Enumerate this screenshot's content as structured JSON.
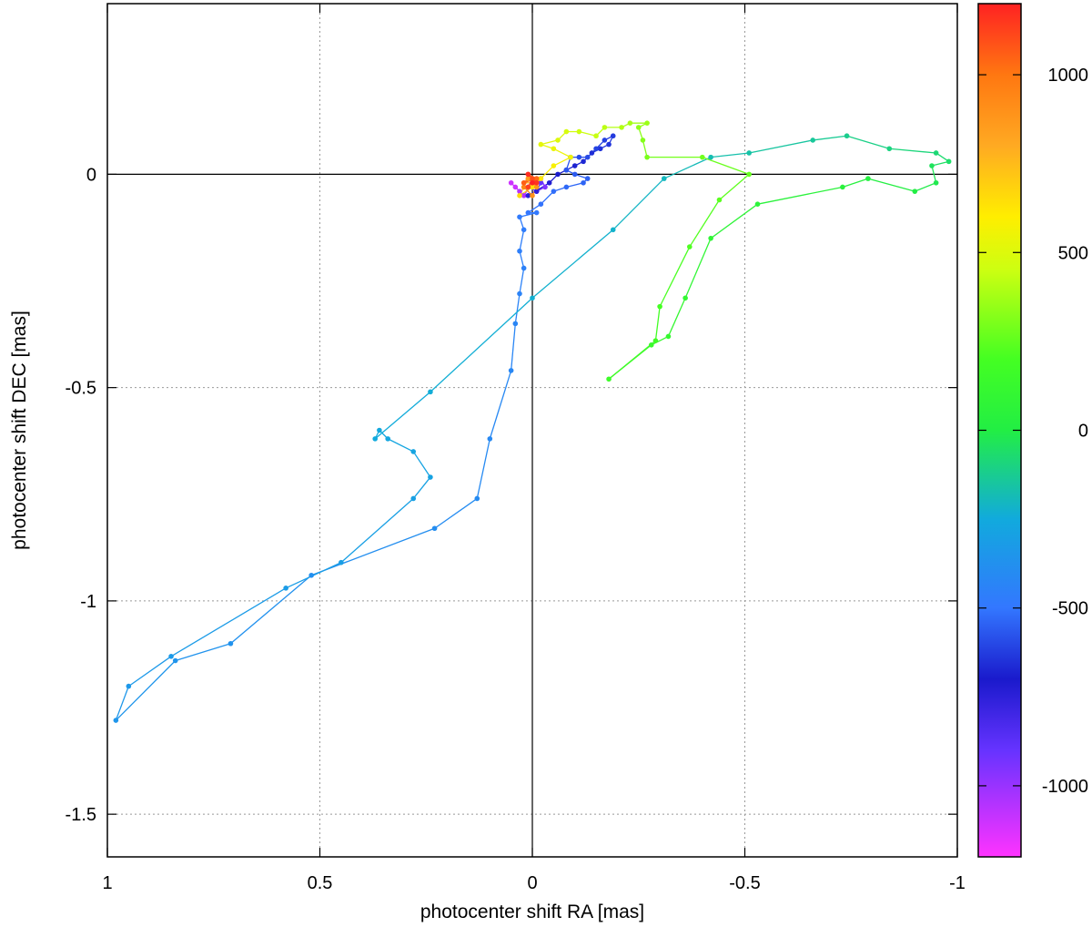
{
  "chart_data": {
    "type": "line",
    "xlabel": "photocenter shift RA [mas]",
    "ylabel": "photocenter shift DEC [mas]",
    "xlim": [
      1.0,
      -1.0
    ],
    "ylim": [
      -1.6,
      0.4
    ],
    "x_reversed": true,
    "xticks": [
      1,
      0.5,
      0,
      -0.5,
      -1
    ],
    "xtick_labels": [
      "1",
      "0.5",
      "0",
      "-0.5",
      "-1"
    ],
    "yticks": [
      0,
      -0.5,
      -1,
      -1.5
    ],
    "ytick_labels": [
      "0",
      "-0.5",
      "-1",
      "-1.5"
    ],
    "grid": true,
    "zero_lines": true,
    "colorbar": {
      "range": [
        -1200,
        1200
      ],
      "ticks": [
        1000,
        500,
        0,
        -500,
        -1000
      ],
      "tick_labels": [
        "1000",
        "500",
        "0",
        "-500",
        "-1000"
      ],
      "colors": [
        {
          "v": -1200,
          "c": "#ff33ff"
        },
        {
          "v": -900,
          "c": "#6633ff"
        },
        {
          "v": -700,
          "c": "#1a1acc"
        },
        {
          "v": -500,
          "c": "#3377ff"
        },
        {
          "v": -250,
          "c": "#11aadd"
        },
        {
          "v": 0,
          "c": "#22ee44"
        },
        {
          "v": 200,
          "c": "#44ff22"
        },
        {
          "v": 450,
          "c": "#ccff11"
        },
        {
          "v": 600,
          "c": "#ffee00"
        },
        {
          "v": 800,
          "c": "#ffaa22"
        },
        {
          "v": 1000,
          "c": "#ff7711"
        },
        {
          "v": 1200,
          "c": "#ff2222"
        }
      ]
    },
    "series": [
      {
        "values": [
          [
            0.05,
            -0.02,
            -1100
          ],
          [
            0.04,
            -0.03,
            -1100
          ],
          [
            0.03,
            -0.04,
            -1050
          ],
          [
            0.02,
            -0.05,
            -1050
          ],
          [
            0.0,
            -0.02,
            -1000
          ],
          [
            -0.02,
            -0.01,
            -1000
          ],
          [
            -0.03,
            -0.03,
            -950
          ],
          [
            -0.01,
            -0.04,
            -950
          ],
          [
            0.01,
            -0.03,
            -900
          ],
          [
            -0.02,
            -0.02,
            -900
          ],
          [
            -0.01,
            -0.04,
            -750
          ],
          [
            0.01,
            -0.05,
            -740
          ],
          [
            -0.04,
            -0.02,
            -720
          ],
          [
            -0.06,
            0.0,
            -700
          ],
          [
            -0.08,
            0.01,
            -690
          ],
          [
            -0.1,
            0.02,
            -680
          ],
          [
            -0.12,
            0.03,
            -670
          ],
          [
            -0.14,
            0.05,
            -660
          ],
          [
            -0.16,
            0.06,
            -650
          ],
          [
            -0.18,
            0.07,
            -640
          ],
          [
            -0.19,
            0.09,
            -630
          ],
          [
            -0.17,
            0.08,
            -620
          ],
          [
            -0.15,
            0.06,
            -610
          ],
          [
            -0.13,
            0.04,
            -600
          ],
          [
            -0.11,
            0.04,
            -590
          ],
          [
            -0.09,
            0.04,
            -580
          ],
          [
            -0.08,
            0.01,
            -570
          ],
          [
            -0.1,
            0.0,
            -560
          ],
          [
            -0.13,
            -0.01,
            -550
          ],
          [
            -0.12,
            -0.02,
            -540
          ],
          [
            -0.08,
            -0.03,
            -530
          ],
          [
            -0.05,
            -0.04,
            -520
          ],
          [
            -0.02,
            -0.07,
            -510
          ],
          [
            0.01,
            -0.09,
            -500
          ],
          [
            -0.01,
            -0.09,
            -490
          ],
          [
            0.03,
            -0.1,
            -480
          ],
          [
            0.02,
            -0.13,
            -470
          ],
          [
            0.03,
            -0.18,
            -460
          ],
          [
            0.02,
            -0.22,
            -450
          ],
          [
            0.03,
            -0.28,
            -440
          ],
          [
            0.04,
            -0.35,
            -430
          ],
          [
            0.05,
            -0.46,
            -420
          ],
          [
            0.1,
            -0.62,
            -410
          ],
          [
            0.13,
            -0.76,
            -400
          ],
          [
            0.23,
            -0.83,
            -390
          ],
          [
            0.52,
            -0.94,
            -380
          ],
          [
            0.71,
            -1.1,
            -370
          ],
          [
            0.84,
            -1.14,
            -360
          ],
          [
            0.98,
            -1.28,
            -350
          ],
          [
            0.95,
            -1.2,
            -340
          ],
          [
            0.85,
            -1.13,
            -330
          ],
          [
            0.58,
            -0.97,
            -320
          ],
          [
            0.45,
            -0.91,
            -310
          ],
          [
            0.28,
            -0.76,
            -300
          ],
          [
            0.24,
            -0.71,
            -290
          ],
          [
            0.28,
            -0.65,
            -280
          ],
          [
            0.34,
            -0.62,
            -270
          ],
          [
            0.36,
            -0.6,
            -260
          ],
          [
            0.37,
            -0.62,
            -250
          ],
          [
            0.24,
            -0.51,
            -240
          ],
          [
            0.0,
            -0.29,
            -230
          ],
          [
            -0.19,
            -0.13,
            -220
          ],
          [
            -0.31,
            -0.01,
            -200
          ],
          [
            -0.42,
            0.04,
            -180
          ],
          [
            -0.51,
            0.05,
            -160
          ],
          [
            -0.66,
            0.08,
            -140
          ],
          [
            -0.74,
            0.09,
            -120
          ],
          [
            -0.84,
            0.06,
            -100
          ],
          [
            -0.95,
            0.05,
            -80
          ],
          [
            -0.98,
            0.03,
            -60
          ],
          [
            -0.94,
            0.02,
            -40
          ],
          [
            -0.95,
            -0.02,
            -20
          ],
          [
            -0.9,
            -0.04,
            0
          ],
          [
            -0.79,
            -0.01,
            20
          ],
          [
            -0.73,
            -0.03,
            40
          ],
          [
            -0.53,
            -0.07,
            60
          ],
          [
            -0.42,
            -0.15,
            80
          ],
          [
            -0.36,
            -0.29,
            100
          ],
          [
            -0.32,
            -0.38,
            120
          ],
          [
            -0.28,
            -0.4,
            140
          ],
          [
            -0.18,
            -0.48,
            160
          ],
          [
            -0.29,
            -0.39,
            180
          ],
          [
            -0.3,
            -0.31,
            200
          ],
          [
            -0.37,
            -0.17,
            220
          ],
          [
            -0.44,
            -0.06,
            240
          ],
          [
            -0.51,
            0.0,
            260
          ],
          [
            -0.4,
            0.04,
            280
          ],
          [
            -0.27,
            0.04,
            300
          ],
          [
            -0.26,
            0.08,
            320
          ],
          [
            -0.25,
            0.11,
            340
          ],
          [
            -0.27,
            0.12,
            360
          ],
          [
            -0.23,
            0.12,
            380
          ],
          [
            -0.21,
            0.11,
            400
          ],
          [
            -0.17,
            0.11,
            420
          ],
          [
            -0.15,
            0.09,
            440
          ],
          [
            -0.11,
            0.1,
            460
          ],
          [
            -0.08,
            0.1,
            480
          ],
          [
            -0.06,
            0.08,
            500
          ],
          [
            -0.02,
            0.07,
            520
          ],
          [
            -0.05,
            0.06,
            540
          ],
          [
            -0.09,
            0.04,
            560
          ],
          [
            -0.05,
            0.02,
            580
          ],
          [
            -0.02,
            -0.01,
            620
          ],
          [
            0.0,
            -0.03,
            640
          ],
          [
            0.03,
            -0.05,
            660
          ],
          [
            0.02,
            -0.03,
            700
          ],
          [
            -0.01,
            -0.02,
            750
          ],
          [
            0.02,
            -0.02,
            800
          ],
          [
            0.01,
            -0.01,
            850
          ],
          [
            -0.01,
            -0.03,
            880
          ],
          [
            0.0,
            -0.05,
            900
          ],
          [
            0.02,
            -0.03,
            950
          ],
          [
            0.01,
            0.0,
            1000
          ],
          [
            -0.01,
            -0.01,
            1030
          ],
          [
            0.02,
            -0.02,
            1060
          ],
          [
            0.0,
            -0.01,
            1100
          ],
          [
            0.01,
            -0.03,
            1130
          ],
          [
            -0.01,
            -0.02,
            1160
          ],
          [
            0.01,
            0.0,
            1180
          ],
          [
            0.0,
            -0.02,
            1200
          ]
        ]
      }
    ]
  }
}
